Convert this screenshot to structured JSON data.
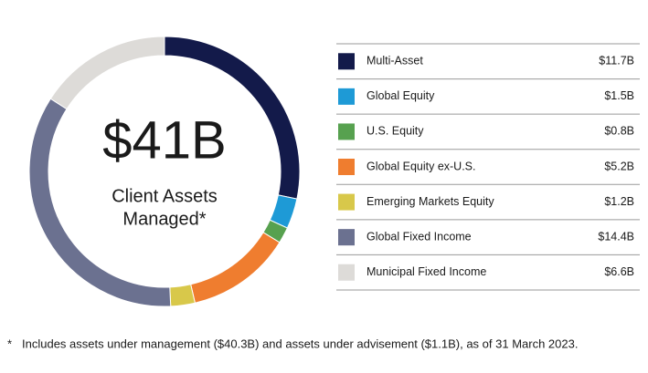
{
  "chart_data": {
    "type": "donut",
    "center_value": "$41B",
    "center_label": [
      "Client Assets",
      "Managed*"
    ],
    "categories": [
      "Multi-Asset",
      "Global Equity",
      "U.S. Equity",
      "Global Equity ex-U.S.",
      "Emerging Markets Equity",
      "Global Fixed Income",
      "Municipal Fixed Income"
    ],
    "values": [
      11.7,
      1.5,
      0.8,
      5.2,
      1.2,
      14.4,
      6.6
    ],
    "value_labels": [
      "$11.7B",
      "$1.5B",
      "$0.8B",
      "$5.2B",
      "$1.2B",
      "$14.4B",
      "$6.6B"
    ],
    "colors": [
      "#131a4a",
      "#1e9ad6",
      "#57a14f",
      "#ef7d2f",
      "#d8c84a",
      "#6b7190",
      "#dddbd8"
    ],
    "footnote": {
      "marker": "*",
      "text": "Includes assets under management ($40.3B) and assets under advisement ($1.1B), as of 31 March 2023."
    }
  }
}
